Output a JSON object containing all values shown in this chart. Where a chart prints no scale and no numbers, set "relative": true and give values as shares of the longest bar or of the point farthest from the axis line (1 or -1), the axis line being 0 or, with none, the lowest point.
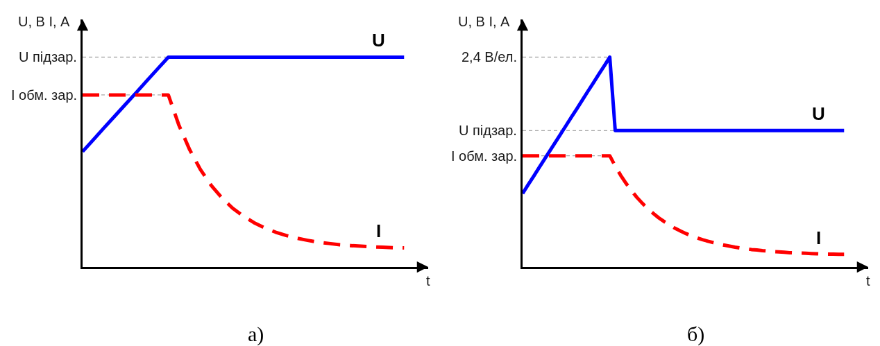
{
  "chart_data": [
    {
      "type": "line",
      "title": "а)",
      "xlabel": "t",
      "ylabel": "U, В I, А",
      "relative": true,
      "categories": [
        null,
        null,
        null,
        null,
        null,
        null,
        null,
        null,
        null,
        null,
        null,
        null,
        null,
        null,
        null,
        null,
        null,
        null,
        null,
        null,
        null,
        null,
        null,
        null,
        null,
        null,
        null,
        null,
        null,
        null,
        null
      ],
      "series": [
        {
          "name": "U",
          "color": "#0000ff",
          "line_style": "solid",
          "values": [
            0.55,
            0.606,
            0.663,
            0.719,
            0.775,
            0.831,
            0.888,
            0.944,
            1,
            1,
            1,
            1,
            1,
            1,
            1,
            1,
            1,
            1,
            1,
            1,
            1,
            1,
            1,
            1,
            1,
            1,
            1,
            1,
            1,
            1,
            1
          ]
        },
        {
          "name": "I",
          "color": "#ff0000",
          "line_style": "dashed",
          "values": [
            0.82,
            0.82,
            0.82,
            0.82,
            0.82,
            0.82,
            0.82,
            0.82,
            0.82,
            0.674,
            0.558,
            0.464,
            0.389,
            0.329,
            0.28,
            0.242,
            0.211,
            0.186,
            0.166,
            0.15,
            0.137,
            0.127,
            0.118,
            0.112,
            0.106,
            0.102,
            0.099,
            0.096,
            0.094,
            0.092,
            0.091
          ]
        }
      ],
      "ref_lines": [
        {
          "axis": "y",
          "value": 1,
          "label": "U підзар.",
          "color": "#a6a6a6",
          "line_style": "dashed"
        },
        {
          "axis": "y",
          "value": 0.82,
          "label": "I обм. зар.",
          "color": "#a6a6a6",
          "line_style": "dashed"
        }
      ]
    },
    {
      "type": "line",
      "title": "б)",
      "xlabel": "t",
      "ylabel": "U, В I, А",
      "relative": true,
      "categories": [
        null,
        null,
        null,
        null,
        null,
        null,
        null,
        null,
        null,
        null,
        null,
        null,
        null,
        null,
        null,
        null,
        null,
        null,
        null,
        null,
        null,
        null,
        null,
        null,
        null,
        null,
        null,
        null,
        null,
        null,
        null,
        null,
        null,
        null,
        null,
        null,
        null,
        null,
        null,
        null,
        null,
        null,
        null,
        null,
        null,
        null,
        null,
        null,
        null,
        null,
        null,
        null,
        null,
        null,
        null,
        null,
        null,
        null,
        null,
        null
      ],
      "series": [
        {
          "name": "U",
          "color": "#0000ff",
          "line_style": "solid",
          "values": [
            0.35,
            0.391,
            0.431,
            0.472,
            0.513,
            0.553,
            0.594,
            0.634,
            0.675,
            0.716,
            0.756,
            0.797,
            0.838,
            0.878,
            0.919,
            0.959,
            1,
            0.65,
            0.65,
            0.65,
            0.65,
            0.65,
            0.65,
            0.65,
            0.65,
            0.65,
            0.65,
            0.65,
            0.65,
            0.65,
            0.65,
            0.65,
            0.65,
            0.65,
            0.65,
            0.65,
            0.65,
            0.65,
            0.65,
            0.65,
            0.65,
            0.65,
            0.65,
            0.65,
            0.65,
            0.65,
            0.65,
            0.65,
            0.65,
            0.65,
            0.65,
            0.65,
            0.65,
            0.65,
            0.65,
            0.65,
            0.65,
            0.65,
            0.65,
            0.65
          ]
        },
        {
          "name": "I",
          "color": "#ff0000",
          "line_style": "dashed",
          "values": [
            0.53,
            0.53,
            0.53,
            0.53,
            0.53,
            0.53,
            0.53,
            0.53,
            0.53,
            0.53,
            0.53,
            0.53,
            0.53,
            0.53,
            0.53,
            0.53,
            0.53,
            0.481,
            0.437,
            0.398,
            0.363,
            0.331,
            0.303,
            0.277,
            0.255,
            0.234,
            0.216,
            0.199,
            0.184,
            0.171,
            0.159,
            0.148,
            0.139,
            0.13,
            0.123,
            0.116,
            0.109,
            0.104,
            0.099,
            0.094,
            0.09,
            0.087,
            0.083,
            0.081,
            0.078,
            0.076,
            0.073,
            0.072,
            0.07,
            0.068,
            0.067,
            0.066,
            0.065,
            0.064,
            0.063,
            0.062,
            0.061,
            0.061,
            0.06,
            0.06
          ]
        }
      ],
      "ref_lines": [
        {
          "axis": "y",
          "value": 1,
          "label": "2,4 В/ел.",
          "color": "#a6a6a6",
          "line_style": "dashed"
        },
        {
          "axis": "y",
          "value": 0.65,
          "label": "U підзар.",
          "color": "#a6a6a6",
          "line_style": "dashed"
        },
        {
          "axis": "y",
          "value": 0.53,
          "label": "I обм. зар.",
          "color": "#a6a6a6",
          "line_style": "dashed"
        }
      ]
    }
  ]
}
